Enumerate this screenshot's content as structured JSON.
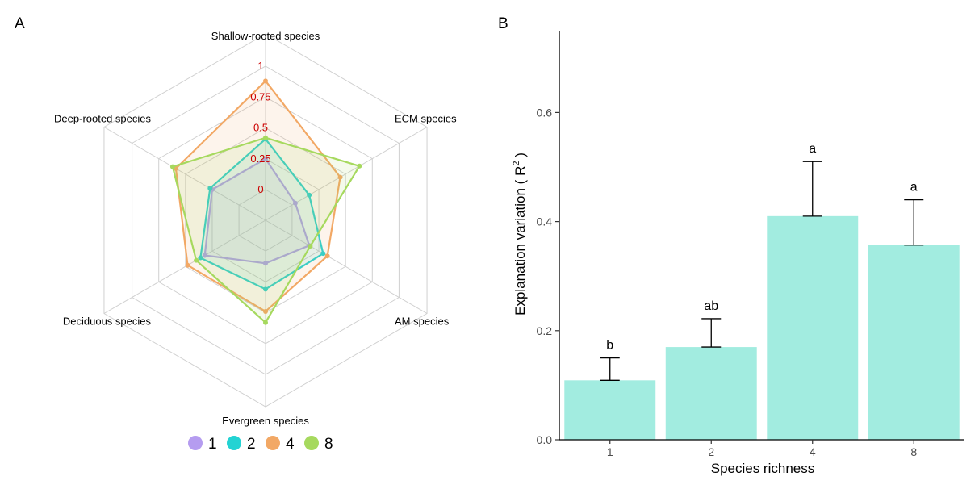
{
  "chart_data": [
    {
      "panel": "A",
      "type": "radar",
      "axes": [
        "Shallow-rooted species",
        "ECM species",
        "AM species",
        "Evergreen species",
        "Deciduous species",
        "Deep-rooted species"
      ],
      "ring_labels": [
        "0",
        "0.25",
        "0.5",
        "0.75",
        "1"
      ],
      "ring_values": [
        0,
        0.25,
        0.5,
        0.75,
        1
      ],
      "range": [
        0,
        1
      ],
      "series": [
        {
          "name": "1",
          "color": "#b59cf0",
          "values": [
            0.25,
            0.03,
            0.16,
            0.1,
            0.32,
            0.25
          ]
        },
        {
          "name": "2",
          "color": "#23d3d3",
          "values": [
            0.41,
            0.16,
            0.29,
            0.31,
            0.36,
            0.27
          ]
        },
        {
          "name": "4",
          "color": "#f2a865",
          "values": [
            0.88,
            0.45,
            0.33,
            0.49,
            0.48,
            0.59
          ]
        },
        {
          "name": "8",
          "color": "#a6d95e",
          "values": [
            0.42,
            0.63,
            0.17,
            0.58,
            0.4,
            0.62
          ]
        }
      ],
      "legend": {
        "position": "bottom",
        "items": [
          "1",
          "2",
          "4",
          "8"
        ]
      }
    },
    {
      "panel": "B",
      "type": "bar",
      "categories": [
        "1",
        "2",
        "4",
        "8"
      ],
      "values": [
        0.109,
        0.17,
        0.41,
        0.357
      ],
      "error_upper": [
        0.15,
        0.222,
        0.51,
        0.44
      ],
      "letters": [
        "b",
        "ab",
        "a",
        "a"
      ],
      "bar_color": "#a2ece0",
      "xlabel": "Species richness",
      "ylabel_main": "Explanation variation ( R",
      "ylabel_sup": "2",
      "ylabel_end": " )",
      "yticks": [
        "0.0",
        "0.2",
        "0.4",
        "0.6"
      ],
      "ytick_values": [
        0,
        0.2,
        0.4,
        0.6
      ],
      "ylim": [
        0,
        0.75
      ]
    }
  ]
}
